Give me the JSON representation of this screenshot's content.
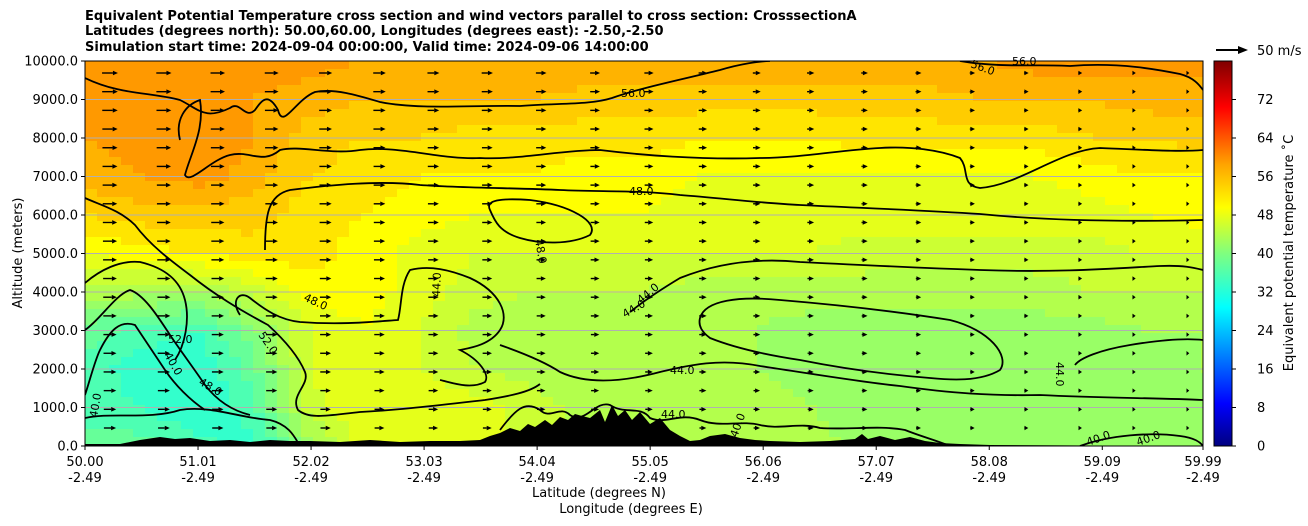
{
  "chart_data": {
    "type": "contour",
    "title_lines": [
      "Equivalent Potential Temperature cross section and wind vectors parallel to cross section: CrosssectionA",
      "Latitudes (degrees north): 50.00,60.00, Longitudes (degrees east): -2.50,-2.50",
      "Simulation start time: 2024-09-04 00:00:00, Valid time: 2024-09-06 14:00:00"
    ],
    "xlabel": "Latitude (degrees N)",
    "xlabel2": "Longitude (degrees E)",
    "ylabel": "Altitude (meters)",
    "x_range": [
      50.0,
      59.99
    ],
    "y_range": [
      0,
      10000
    ],
    "x_ticks": [
      {
        "lat": "50.00",
        "lon": "-2.49"
      },
      {
        "lat": "51.01",
        "lon": "-2.49"
      },
      {
        "lat": "52.02",
        "lon": "-2.49"
      },
      {
        "lat": "53.03",
        "lon": "-2.49"
      },
      {
        "lat": "54.04",
        "lon": "-2.49"
      },
      {
        "lat": "55.05",
        "lon": "-2.49"
      },
      {
        "lat": "56.06",
        "lon": "-2.49"
      },
      {
        "lat": "57.07",
        "lon": "-2.49"
      },
      {
        "lat": "58.08",
        "lon": "-2.49"
      },
      {
        "lat": "59.09",
        "lon": "-2.49"
      },
      {
        "lat": "59.99",
        "lon": "-2.49"
      }
    ],
    "y_ticks": [
      "0.0",
      "1000.0",
      "2000.0",
      "3000.0",
      "4000.0",
      "5000.0",
      "6000.0",
      "7000.0",
      "8000.0",
      "9000.0",
      "10000.0"
    ],
    "colorbar": {
      "label": "Equivalent potential temperature $^\\circ$C",
      "label_display": "Equivalent potential temperature ˚C",
      "min": 0,
      "max": 80,
      "ticks": [
        "0",
        "8",
        "16",
        "24",
        "32",
        "40",
        "48",
        "56",
        "64",
        "72"
      ]
    },
    "quiver_key": "50 m/s",
    "contour_labels": [
      "56.0",
      "56.0",
      "56.0",
      "48.0",
      "48.0",
      "48.0",
      "44.0",
      "44.0",
      "44.0",
      "44.0",
      "44.0",
      "52.0",
      "52.0",
      "40.0",
      "40.0",
      "40.0",
      "40.0",
      "44.0",
      "48.0",
      "40.0"
    ],
    "field_levels": [
      {
        "alt": 0,
        "temps": [
          38,
          38,
          36,
          34,
          42,
          48,
          48,
          48,
          46,
          44,
          44,
          44,
          44,
          44,
          42,
          42,
          42,
          42,
          42,
          42,
          42
        ]
      },
      {
        "alt": 1000,
        "temps": [
          36,
          35,
          33,
          36,
          46,
          49,
          49,
          48,
          46,
          44,
          44,
          44,
          44,
          43,
          42,
          42,
          42,
          42,
          42,
          42,
          42
        ]
      },
      {
        "alt": 2000,
        "temps": [
          36,
          34,
          33,
          38,
          47,
          49,
          47,
          45,
          44,
          44,
          44,
          44,
          43,
          42,
          42,
          41,
          41,
          41,
          42,
          42,
          43
        ]
      },
      {
        "alt": 3000,
        "temps": [
          38,
          36,
          35,
          40,
          47,
          49,
          47,
          44,
          43,
          43,
          43,
          43,
          43,
          42,
          42,
          42,
          42,
          42,
          42,
          43,
          43
        ]
      },
      {
        "alt": 4000,
        "temps": [
          44,
          44,
          43,
          46,
          50,
          50,
          48,
          46,
          45,
          45,
          45,
          44,
          44,
          44,
          44,
          44,
          44,
          44,
          45,
          45,
          45
        ]
      },
      {
        "alt": 5000,
        "temps": [
          49,
          50,
          51,
          52,
          52,
          50,
          48,
          47,
          47,
          47,
          47,
          47,
          47,
          47,
          46,
          46,
          46,
          46,
          46,
          47,
          47
        ]
      },
      {
        "alt": 6000,
        "temps": [
          53,
          54,
          54,
          54,
          52,
          51,
          50,
          49,
          49,
          49,
          49,
          48,
          48,
          48,
          48,
          48,
          48,
          48,
          48,
          49,
          50
        ]
      },
      {
        "alt": 7000,
        "temps": [
          56,
          57,
          58,
          56,
          53,
          52,
          51,
          51,
          51,
          50,
          50,
          49,
          49,
          49,
          49,
          49,
          49,
          49,
          50,
          51,
          51
        ]
      },
      {
        "alt": 8000,
        "temps": [
          57,
          58,
          59,
          57,
          54,
          53,
          53,
          52,
          52,
          52,
          52,
          51,
          51,
          51,
          52,
          52,
          52,
          52,
          53,
          53,
          54
        ]
      },
      {
        "alt": 9000,
        "temps": [
          58,
          58,
          58,
          57,
          56,
          55,
          55,
          55,
          55,
          54,
          54,
          54,
          54,
          54,
          54,
          54,
          55,
          55,
          55,
          56,
          56
        ]
      },
      {
        "alt": 10000,
        "temps": [
          58,
          58,
          58,
          58,
          58,
          57,
          57,
          57,
          57,
          57,
          57,
          57,
          57,
          57,
          57,
          57,
          57,
          58,
          58,
          58,
          58
        ]
      }
    ],
    "terrain_peaks_m": [
      {
        "lat": 50.6,
        "alt": 150
      },
      {
        "lat": 51.0,
        "alt": 120
      },
      {
        "lat": 52.2,
        "alt": 80
      },
      {
        "lat": 53.3,
        "alt": 60
      },
      {
        "lat": 54.5,
        "alt": 350
      },
      {
        "lat": 54.75,
        "alt": 550
      },
      {
        "lat": 54.95,
        "alt": 500
      },
      {
        "lat": 55.1,
        "alt": 300
      },
      {
        "lat": 55.5,
        "alt": 150
      },
      {
        "lat": 56.0,
        "alt": 200
      },
      {
        "lat": 56.9,
        "alt": 250
      },
      {
        "lat": 57.3,
        "alt": 200
      }
    ]
  }
}
